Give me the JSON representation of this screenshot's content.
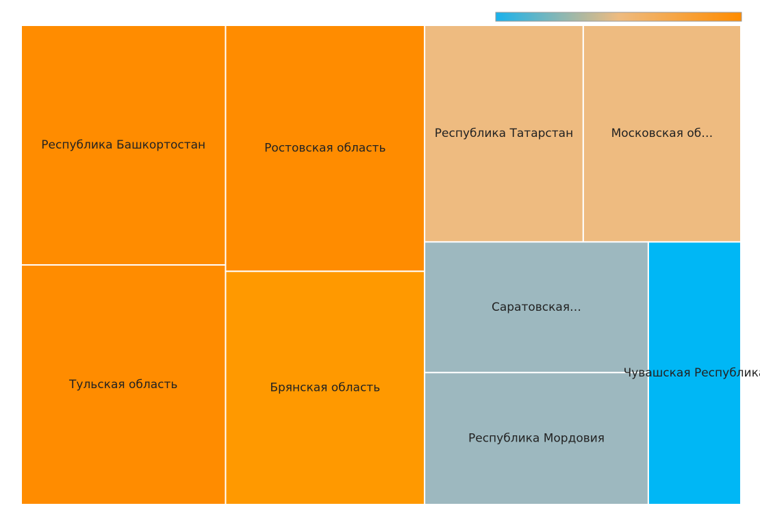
{
  "chart_data": {
    "type": "treemap",
    "categories": [
      "Республика Башкортостан",
      "Тульская область",
      "Ростовская область",
      "Брянская область",
      "Республика Татарстан",
      "Московская об…",
      "Саратовская…",
      "Республика Мордовия",
      "Чувашская Республика"
    ],
    "values": [
      104,
      104,
      104,
      98.6,
      73,
      72.5,
      62.1,
      62.7,
      51.6
    ],
    "colors": [
      "#ff8c00",
      "#ff8c00",
      "#ff8c00",
      "#ff9900",
      "#eebb80",
      "#eebb80",
      "#9db8bf",
      "#9db8bf",
      "#00b7f5"
    ],
    "color_scale": [
      "#1ab2ec",
      "#eebb80",
      "#ff8c00"
    ]
  }
}
